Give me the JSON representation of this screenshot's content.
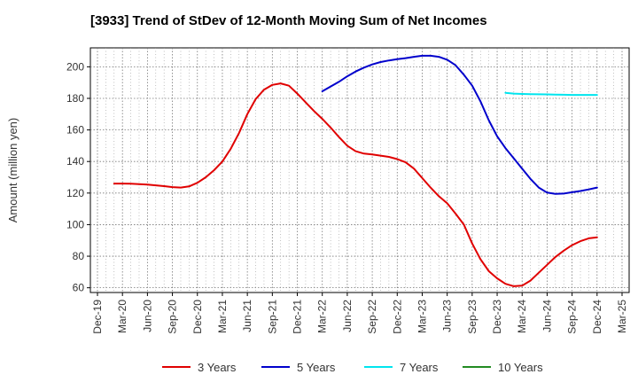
{
  "title": "[3933]  Trend of StDev of 12-Month Moving Sum of Net Incomes",
  "chart_data": {
    "type": "line",
    "title": "[3933]  Trend of StDev of 12-Month Moving Sum of Net Incomes",
    "xlabel": "",
    "ylabel": "Amount (million yen)",
    "ylim": [
      57,
      212
    ],
    "yticks": [
      60,
      80,
      100,
      120,
      140,
      160,
      180,
      200
    ],
    "xticks": [
      "Dec-19",
      "Mar-20",
      "Jun-20",
      "Sep-20",
      "Dec-20",
      "Mar-21",
      "Jun-21",
      "Sep-21",
      "Dec-21",
      "Mar-22",
      "Jun-22",
      "Sep-22",
      "Dec-22",
      "Mar-23",
      "Jun-23",
      "Sep-23",
      "Dec-23",
      "Mar-24",
      "Jun-24",
      "Sep-24",
      "Dec-24",
      "Mar-25"
    ],
    "grid": true,
    "legend_position": "bottom",
    "series": [
      {
        "name": "3 Years",
        "color": "#e00000",
        "x": [
          "Dec-19",
          "Jan-20",
          "Feb-20",
          "Mar-20",
          "Apr-20",
          "May-20",
          "Jun-20",
          "Jul-20",
          "Aug-20",
          "Sep-20",
          "Oct-20",
          "Nov-20",
          "Dec-20",
          "Jan-21",
          "Feb-21",
          "Mar-21",
          "Apr-21",
          "May-21",
          "Jun-21",
          "Jul-21",
          "Aug-21",
          "Sep-21",
          "Oct-21",
          "Nov-21",
          "Dec-21",
          "Jan-22",
          "Feb-22",
          "Mar-22",
          "Apr-22",
          "May-22",
          "Jun-22",
          "Jul-22",
          "Aug-22",
          "Sep-22",
          "Oct-22",
          "Nov-22",
          "Dec-22",
          "Jan-23",
          "Feb-23",
          "Mar-23",
          "Apr-23",
          "May-23",
          "Jun-23",
          "Jul-23",
          "Aug-23",
          "Sep-23",
          "Oct-23",
          "Nov-23",
          "Dec-23",
          "Jan-24",
          "Feb-24",
          "Mar-24",
          "Apr-24",
          "May-24",
          "Jun-24",
          "Jul-24",
          "Aug-24",
          "Sep-24",
          "Oct-24",
          "Nov-24",
          "Dec-24"
        ],
        "values": [
          null,
          null,
          126,
          126,
          125.9,
          125.6,
          125.4,
          124.9,
          124.4,
          123.8,
          123.5,
          124.2,
          126.5,
          130,
          134.5,
          140,
          148,
          158,
          170,
          179.5,
          185.5,
          188.5,
          189.5,
          188,
          183,
          177.5,
          172,
          167,
          161.5,
          155.5,
          150,
          146.5,
          145,
          144.5,
          143.7,
          142.9,
          141.5,
          139.5,
          135.5,
          129.5,
          123.5,
          118,
          113.5,
          107,
          100,
          88,
          78,
          70.5,
          66,
          62.5,
          61,
          61.3,
          64.5,
          69.5,
          74.5,
          79.5,
          83.5,
          87,
          89.5,
          91.3,
          92
        ]
      },
      {
        "name": "5 Years",
        "color": "#0000cc",
        "x": [
          "Dec-19",
          "Jan-20",
          "Feb-20",
          "Mar-20",
          "Apr-20",
          "May-20",
          "Jun-20",
          "Jul-20",
          "Aug-20",
          "Sep-20",
          "Oct-20",
          "Nov-20",
          "Dec-20",
          "Jan-21",
          "Feb-21",
          "Mar-21",
          "Apr-21",
          "May-21",
          "Jun-21",
          "Jul-21",
          "Aug-21",
          "Sep-21",
          "Oct-21",
          "Nov-21",
          "Dec-21",
          "Jan-22",
          "Feb-22",
          "Mar-22",
          "Apr-22",
          "May-22",
          "Jun-22",
          "Jul-22",
          "Aug-22",
          "Sep-22",
          "Oct-22",
          "Nov-22",
          "Dec-22",
          "Jan-23",
          "Feb-23",
          "Mar-23",
          "Apr-23",
          "May-23",
          "Jun-23",
          "Jul-23",
          "Aug-23",
          "Sep-23",
          "Oct-23",
          "Nov-23",
          "Dec-23",
          "Jan-24",
          "Feb-24",
          "Mar-24",
          "Apr-24",
          "May-24",
          "Jun-24",
          "Jul-24",
          "Aug-24",
          "Sep-24",
          "Oct-24",
          "Nov-24",
          "Dec-24"
        ],
        "values": [
          null,
          null,
          null,
          null,
          null,
          null,
          null,
          null,
          null,
          null,
          null,
          null,
          null,
          null,
          null,
          null,
          null,
          null,
          null,
          null,
          null,
          null,
          null,
          null,
          null,
          null,
          null,
          184.5,
          187.5,
          190.5,
          194,
          197,
          199.5,
          201.5,
          203,
          204,
          204.8,
          205.5,
          206.3,
          207,
          207,
          206.3,
          204.5,
          201,
          195,
          188,
          178,
          166,
          156,
          148.5,
          142,
          135.5,
          129,
          123.5,
          120.3,
          119.5,
          119.7,
          120.5,
          121.3,
          122.3,
          123.5
        ]
      },
      {
        "name": "7 Years",
        "color": "#00e5ee",
        "x": [
          "Dec-19",
          "Jan-20",
          "Feb-20",
          "Mar-20",
          "Apr-20",
          "May-20",
          "Jun-20",
          "Jul-20",
          "Aug-20",
          "Sep-20",
          "Oct-20",
          "Nov-20",
          "Dec-20",
          "Jan-21",
          "Feb-21",
          "Mar-21",
          "Apr-21",
          "May-21",
          "Jun-21",
          "Jul-21",
          "Aug-21",
          "Sep-21",
          "Oct-21",
          "Nov-21",
          "Dec-21",
          "Jan-22",
          "Feb-22",
          "Mar-22",
          "Apr-22",
          "May-22",
          "Jun-22",
          "Jul-22",
          "Aug-22",
          "Sep-22",
          "Oct-22",
          "Nov-22",
          "Dec-22",
          "Jan-23",
          "Feb-23",
          "Mar-23",
          "Apr-23",
          "May-23",
          "Jun-23",
          "Jul-23",
          "Aug-23",
          "Sep-23",
          "Oct-23",
          "Nov-23",
          "Dec-23",
          "Jan-24",
          "Feb-24",
          "Mar-24",
          "Apr-24",
          "May-24",
          "Jun-24",
          "Jul-24",
          "Aug-24",
          "Sep-24",
          "Oct-24",
          "Nov-24",
          "Dec-24"
        ],
        "values": [
          null,
          null,
          null,
          null,
          null,
          null,
          null,
          null,
          null,
          null,
          null,
          null,
          null,
          null,
          null,
          null,
          null,
          null,
          null,
          null,
          null,
          null,
          null,
          null,
          null,
          null,
          null,
          null,
          null,
          null,
          null,
          null,
          null,
          null,
          null,
          null,
          null,
          null,
          null,
          null,
          null,
          null,
          null,
          null,
          null,
          null,
          null,
          null,
          null,
          183.5,
          183,
          182.8,
          182.7,
          182.6,
          182.5,
          182.4,
          182.3,
          182.2,
          182.2,
          182.2,
          182.2
        ]
      },
      {
        "name": "10 Years",
        "color": "#228b22",
        "x": [],
        "values": []
      }
    ]
  }
}
